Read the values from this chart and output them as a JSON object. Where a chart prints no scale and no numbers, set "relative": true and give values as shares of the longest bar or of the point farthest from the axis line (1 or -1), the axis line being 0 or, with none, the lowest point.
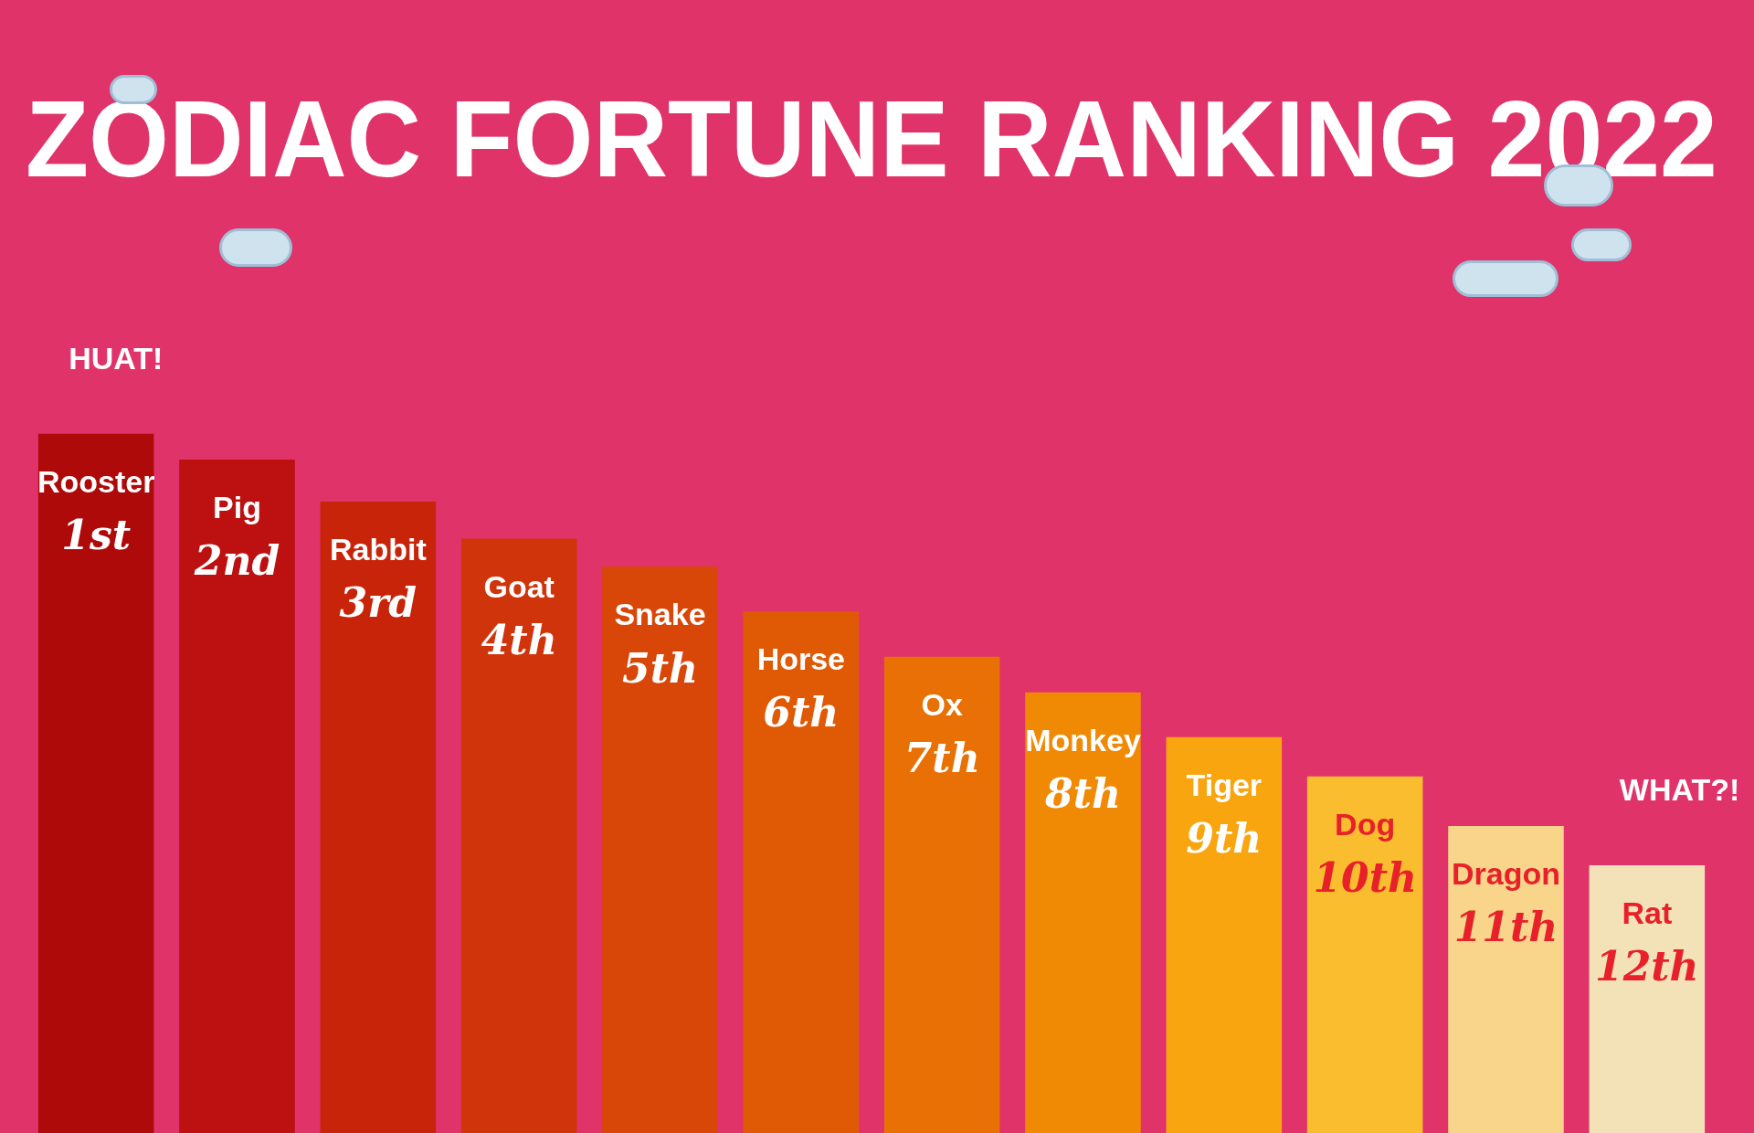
{
  "chart_data": {
    "type": "bar",
    "title": "ZODIAC FORTUNE RANKING 2022",
    "relative": true,
    "categories": [
      "Rooster",
      "Pig",
      "Rabbit",
      "Goat",
      "Snake",
      "Horse",
      "Ox",
      "Monkey",
      "Tiger",
      "Dog",
      "Dragon",
      "Rat"
    ],
    "values": [
      1,
      0.963,
      0.903,
      0.85,
      0.81,
      0.746,
      0.681,
      0.63,
      0.566,
      0.51,
      0.439,
      0.383
    ],
    "colors": [
      "#ae0a0a",
      "#bd1010",
      "#c8240a",
      "#d0340a",
      "#d84608",
      "#e05a05",
      "#e87005",
      "#f08a05",
      "#f9a510",
      "#fbbd30",
      "#f8d58a",
      "#f3e2b8"
    ],
    "legend": false,
    "annotations": [
      {
        "text": "1st",
        "x": "Rooster",
        "y": 1
      },
      {
        "text": "2nd",
        "x": "Pig",
        "y": 0.963
      },
      {
        "text": "3rd",
        "x": "Rabbit",
        "y": 0.903
      },
      {
        "text": "4th",
        "x": "Goat",
        "y": 0.85
      },
      {
        "text": "5th",
        "x": "Snake",
        "y": 0.81
      },
      {
        "text": "6th",
        "x": "Horse",
        "y": 0.746
      },
      {
        "text": "7th",
        "x": "Ox",
        "y": 0.681
      },
      {
        "text": "8th",
        "x": "Monkey",
        "y": 0.63
      },
      {
        "text": "9th",
        "x": "Tiger",
        "y": 0.566
      },
      {
        "text": "10th",
        "x": "Dog",
        "y": 0.51
      },
      {
        "text": "11th",
        "x": "Dragon",
        "y": 0.439
      },
      {
        "text": "12th",
        "x": "Rat",
        "y": 0.383
      },
      {
        "text": "HUAT!",
        "x": "Rooster",
        "y": 1
      },
      {
        "text": "WHAT?!",
        "x": "Rat",
        "y": 0.383
      }
    ]
  }
}
